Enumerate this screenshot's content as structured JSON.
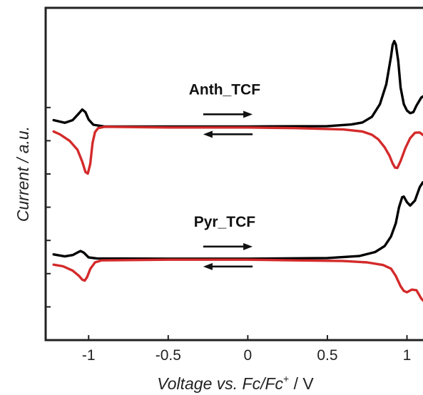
{
  "chart_data": {
    "type": "line",
    "xlabel": "Voltage vs. Fc/Fc",
    "xlabel_superscript": "+",
    "xlabel_unit": " / V",
    "ylabel": "Current / a.u.",
    "xlim": [
      -1.27,
      1.15
    ],
    "ylim": [
      0,
      100
    ],
    "x_ticks": [
      -1,
      -0.5,
      0,
      0.5,
      1
    ],
    "x_tick_labels": [
      "-1",
      "-0.5",
      "0",
      "0.5",
      "1"
    ],
    "y_ticks": [
      10,
      20,
      30,
      40,
      50,
      60,
      70
    ],
    "y_tick_labels_shown": false,
    "grid": false,
    "legend": "none",
    "colors": {
      "forward": "#000000",
      "reverse": "#d42a2a",
      "axis": "#222222"
    },
    "panels": [
      {
        "label": "Anth_TCF",
        "arrows": {
          "forward": "right",
          "reverse": "left"
        },
        "series": [
          {
            "sweep": "forward",
            "color": "#000000",
            "points": [
              [
                -1.22,
                66.2
              ],
              [
                -1.15,
                65.4
              ],
              [
                -1.1,
                66.2
              ],
              [
                -1.06,
                68.3
              ],
              [
                -1.04,
                69.4
              ],
              [
                -1.02,
                68.6
              ],
              [
                -1.0,
                66.4
              ],
              [
                -0.97,
                64.8
              ],
              [
                -0.9,
                64.3
              ],
              [
                -0.5,
                64.3
              ],
              [
                0,
                64.3
              ],
              [
                0.5,
                64.4
              ],
              [
                0.65,
                64.9
              ],
              [
                0.72,
                65.5
              ],
              [
                0.78,
                67.2
              ],
              [
                0.83,
                71.0
              ],
              [
                0.87,
                77.0
              ],
              [
                0.9,
                85.4
              ],
              [
                0.91,
                88.8
              ],
              [
                0.92,
                90.0
              ],
              [
                0.93,
                89.0
              ],
              [
                0.945,
                84.0
              ],
              [
                0.96,
                76.0
              ],
              [
                0.98,
                71.0
              ],
              [
                1.0,
                69.1
              ],
              [
                1.02,
                68.3
              ],
              [
                1.04,
                68.6
              ],
              [
                1.06,
                70.6
              ],
              [
                1.09,
                73.0
              ],
              [
                1.12,
                73.9
              ],
              [
                1.15,
                73.8
              ]
            ]
          },
          {
            "sweep": "reverse",
            "color": "#d42a2a",
            "points": [
              [
                -1.22,
                62.8
              ],
              [
                -1.18,
                61.9
              ],
              [
                -1.12,
                60.0
              ],
              [
                -1.07,
                57.3
              ],
              [
                -1.04,
                53.7
              ],
              [
                -1.02,
                50.6
              ],
              [
                -1.005,
                50.1
              ],
              [
                -0.99,
                53.0
              ],
              [
                -0.975,
                59.4
              ],
              [
                -0.96,
                62.6
              ],
              [
                -0.94,
                63.8
              ],
              [
                -0.9,
                64.2
              ],
              [
                -0.5,
                64.0
              ],
              [
                0,
                64.0
              ],
              [
                0.3,
                63.8
              ],
              [
                0.6,
                63.4
              ],
              [
                0.72,
                62.8
              ],
              [
                0.78,
                61.8
              ],
              [
                0.82,
                60.4
              ],
              [
                0.86,
                58.0
              ],
              [
                0.89,
                55.5
              ],
              [
                0.91,
                53.2
              ],
              [
                0.925,
                51.9
              ],
              [
                0.94,
                51.8
              ],
              [
                0.96,
                53.9
              ],
              [
                0.99,
                57.8
              ],
              [
                1.02,
                60.8
              ],
              [
                1.05,
                62.4
              ],
              [
                1.08,
                62.5
              ],
              [
                1.11,
                61.4
              ],
              [
                1.14,
                60.2
              ],
              [
                1.15,
                59.8
              ]
            ]
          }
        ]
      },
      {
        "label": "Pyr_TCF",
        "arrows": {
          "forward": "right",
          "reverse": "left"
        },
        "series": [
          {
            "sweep": "forward",
            "color": "#000000",
            "points": [
              [
                -1.22,
                25.8
              ],
              [
                -1.15,
                25.2
              ],
              [
                -1.1,
                25.6
              ],
              [
                -1.06,
                26.6
              ],
              [
                -1.05,
                26.8
              ],
              [
                -1.03,
                26.3
              ],
              [
                -1.0,
                24.9
              ],
              [
                -0.95,
                24.6
              ],
              [
                -0.5,
                24.5
              ],
              [
                0,
                24.5
              ],
              [
                0.5,
                24.7
              ],
              [
                0.7,
                25.3
              ],
              [
                0.8,
                26.5
              ],
              [
                0.86,
                28.3
              ],
              [
                0.9,
                31.2
              ],
              [
                0.93,
                35.2
              ],
              [
                0.95,
                40.0
              ],
              [
                0.97,
                43.0
              ],
              [
                0.98,
                43.2
              ],
              [
                1.0,
                41.5
              ],
              [
                1.02,
                40.5
              ],
              [
                1.05,
                42.0
              ],
              [
                1.08,
                46.0
              ],
              [
                1.1,
                47.5
              ],
              [
                1.12,
                46.5
              ],
              [
                1.14,
                43.5
              ],
              [
                1.15,
                41.8
              ]
            ]
          },
          {
            "sweep": "reverse",
            "color": "#d42a2a",
            "points": [
              [
                -1.22,
                22.7
              ],
              [
                -1.16,
                22.2
              ],
              [
                -1.1,
                20.9
              ],
              [
                -1.06,
                19.3
              ],
              [
                -1.04,
                18.2
              ],
              [
                -1.025,
                17.9
              ],
              [
                -1.01,
                18.9
              ],
              [
                -0.99,
                21.4
              ],
              [
                -0.96,
                23.4
              ],
              [
                -0.92,
                24.0
              ],
              [
                -0.5,
                24.2
              ],
              [
                0,
                24.2
              ],
              [
                0.3,
                24.0
              ],
              [
                0.6,
                23.8
              ],
              [
                0.75,
                23.4
              ],
              [
                0.85,
                22.6
              ],
              [
                0.9,
                21.5
              ],
              [
                0.93,
                19.3
              ],
              [
                0.96,
                16.2
              ],
              [
                0.98,
                14.8
              ],
              [
                1.0,
                14.4
              ],
              [
                1.03,
                15.2
              ],
              [
                1.06,
                15.0
              ],
              [
                1.09,
                12.5
              ],
              [
                1.12,
                11.0
              ],
              [
                1.15,
                10.9
              ]
            ]
          }
        ]
      }
    ]
  }
}
